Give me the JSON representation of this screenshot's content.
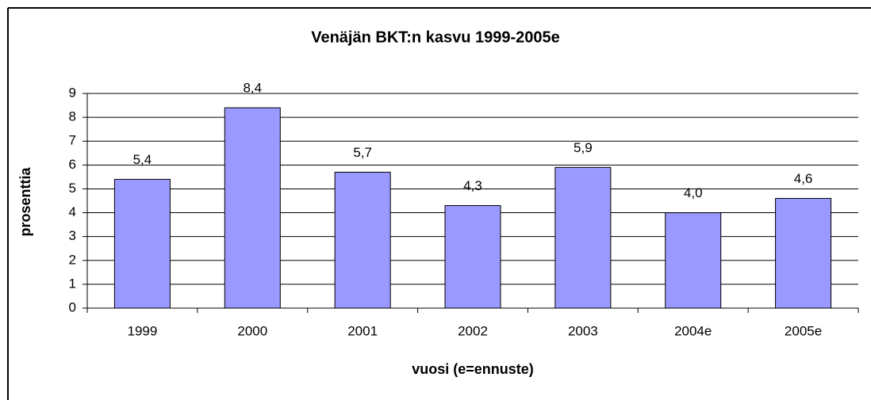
{
  "chart_data": {
    "type": "bar",
    "title": "Venäjän BKT:n kasvu 1999-2005e",
    "xlabel": "vuosi (e=ennuste)",
    "ylabel": "prosenttia",
    "categories": [
      "1999",
      "2000",
      "2001",
      "2002",
      "2003",
      "2004e",
      "2005e"
    ],
    "values": [
      5.4,
      8.4,
      5.7,
      4.3,
      5.9,
      4.0,
      4.6
    ],
    "value_labels": [
      "5,4",
      "8,4",
      "5,7",
      "4,3",
      "5,9",
      "4,0",
      "4,6"
    ],
    "color": "#9999ff",
    "ylim": [
      0,
      9
    ],
    "yticks": [
      0,
      1,
      2,
      3,
      4,
      5,
      6,
      7,
      8,
      9
    ],
    "grid": true
  }
}
